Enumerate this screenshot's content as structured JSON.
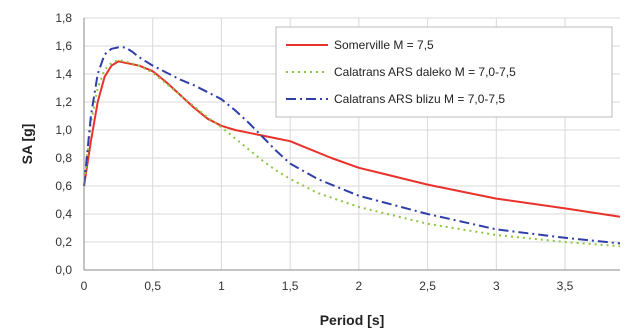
{
  "chart_data": {
    "type": "line",
    "title": "",
    "xlabel": "Period [s]",
    "ylabel": "SA [g]",
    "xlim": [
      0,
      3.9
    ],
    "ylim": [
      0,
      1.8
    ],
    "x_ticks": [
      0,
      0.5,
      1,
      1.5,
      2,
      2.5,
      3,
      3.5
    ],
    "x_tick_labels": [
      "0",
      "0,5",
      "1",
      "1,5",
      "2",
      "2,5",
      "3",
      "3,5"
    ],
    "y_ticks": [
      0,
      0.2,
      0.4,
      0.6,
      0.8,
      1.0,
      1.2,
      1.4,
      1.6,
      1.8
    ],
    "y_tick_labels": [
      "0,0",
      "0,2",
      "0,4",
      "0,6",
      "0,8",
      "1,0",
      "1,2",
      "1,4",
      "1,6",
      "1,8"
    ],
    "grid": true,
    "legend_position": "top-right",
    "series": [
      {
        "name": "Somerville M = 7,5",
        "color": "#e8322b",
        "dash": "solid",
        "x": [
          0,
          0.05,
          0.1,
          0.15,
          0.2,
          0.25,
          0.3,
          0.4,
          0.5,
          0.6,
          0.7,
          0.8,
          0.9,
          1.0,
          1.1,
          1.2,
          1.3,
          1.4,
          1.5,
          1.6,
          1.8,
          2.0,
          2.5,
          3.0,
          3.5,
          3.9
        ],
        "y": [
          0.6,
          0.92,
          1.2,
          1.38,
          1.46,
          1.49,
          1.48,
          1.46,
          1.42,
          1.34,
          1.25,
          1.16,
          1.08,
          1.03,
          1.0,
          0.98,
          0.96,
          0.94,
          0.92,
          0.88,
          0.8,
          0.73,
          0.61,
          0.51,
          0.44,
          0.38
        ]
      },
      {
        "name": "Calatrans ARS daleko M = 7,0-7,5",
        "color": "#8cc63f",
        "dash": "dotted",
        "x": [
          0,
          0.05,
          0.1,
          0.15,
          0.2,
          0.25,
          0.3,
          0.4,
          0.5,
          0.6,
          0.7,
          0.8,
          0.9,
          1.0,
          1.1,
          1.2,
          1.3,
          1.4,
          1.5,
          1.7,
          2.0,
          2.5,
          3.0,
          3.5,
          3.9
        ],
        "y": [
          0.6,
          1.05,
          1.3,
          1.43,
          1.48,
          1.5,
          1.49,
          1.46,
          1.41,
          1.33,
          1.25,
          1.17,
          1.09,
          1.02,
          0.94,
          0.86,
          0.78,
          0.71,
          0.65,
          0.55,
          0.45,
          0.33,
          0.25,
          0.2,
          0.17
        ]
      },
      {
        "name": "Calatrans ARS blizu M = 7,0-7,5",
        "color": "#2f3fa8",
        "dash": "dashdot",
        "x": [
          0,
          0.05,
          0.1,
          0.15,
          0.2,
          0.25,
          0.3,
          0.35,
          0.4,
          0.5,
          0.6,
          0.7,
          0.8,
          0.9,
          1.0,
          1.1,
          1.2,
          1.3,
          1.4,
          1.5,
          1.7,
          2.0,
          2.5,
          3.0,
          3.5,
          3.9
        ],
        "y": [
          0.6,
          1.1,
          1.4,
          1.54,
          1.58,
          1.59,
          1.59,
          1.56,
          1.52,
          1.46,
          1.41,
          1.36,
          1.32,
          1.27,
          1.22,
          1.14,
          1.05,
          0.95,
          0.85,
          0.76,
          0.65,
          0.53,
          0.4,
          0.29,
          0.23,
          0.19
        ]
      }
    ]
  }
}
